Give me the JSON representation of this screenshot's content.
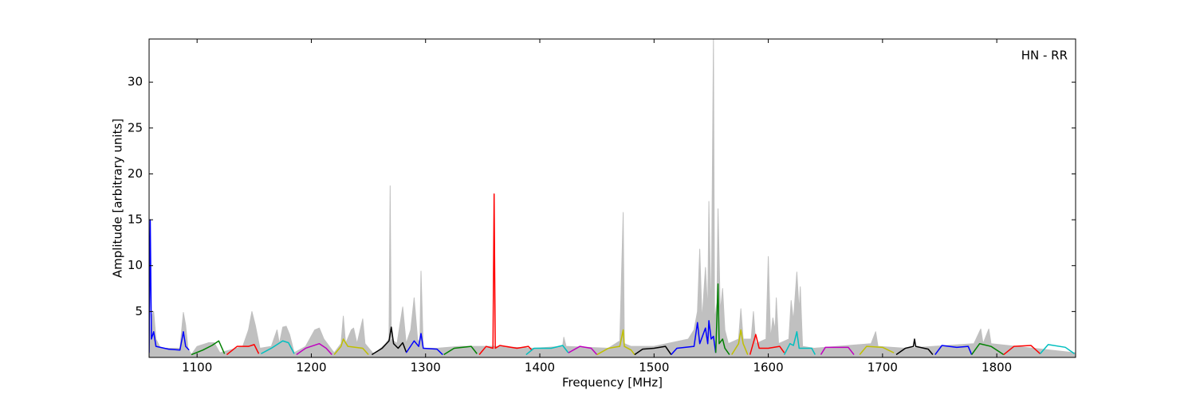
{
  "chart_data": {
    "type": "line",
    "annotation": "HN - RR",
    "xlabel": "Frequency [MHz]",
    "ylabel": "Amplitude [arbitrary units]",
    "xlim": [
      1058,
      1869
    ],
    "xticks": [
      1100,
      1200,
      1300,
      1400,
      1500,
      1600,
      1700,
      1800
    ],
    "ylim": [
      0,
      34.7
    ],
    "yticks": [
      5,
      10,
      15,
      20,
      25,
      30
    ],
    "series": [
      {
        "color": "#c0c0c0",
        "fill": true,
        "x": [
          1058,
          1060,
          1062,
          1064,
          1068,
          1085,
          1088,
          1090,
          1092,
          1095,
          1100,
          1110,
          1115,
          1120,
          1140,
          1145,
          1148,
          1151,
          1155,
          1165,
          1170,
          1172,
          1175,
          1178,
          1181,
          1185,
          1195,
          1203,
          1207,
          1211,
          1220,
          1226,
          1228,
          1230,
          1235,
          1237,
          1240,
          1245,
          1247,
          1255,
          1265,
          1268,
          1269,
          1270,
          1275,
          1280,
          1283,
          1287,
          1290,
          1293,
          1295,
          1296,
          1298,
          1310,
          1330,
          1360,
          1395,
          1420,
          1421,
          1423,
          1460,
          1470,
          1473,
          1474,
          1480,
          1500,
          1530,
          1535,
          1538,
          1540,
          1542,
          1545,
          1547,
          1548,
          1550,
          1552,
          1553,
          1555,
          1556,
          1558,
          1560,
          1562,
          1565,
          1574,
          1576,
          1578,
          1585,
          1587,
          1589,
          1598,
          1600,
          1602,
          1604,
          1606,
          1607,
          1609,
          1618,
          1620,
          1622,
          1625,
          1627,
          1628,
          1630,
          1640,
          1690,
          1694,
          1696,
          1720,
          1780,
          1786,
          1788,
          1793,
          1795,
          1869
        ],
        "values": [
          0.5,
          4.5,
          5,
          2,
          1,
          1,
          4.9,
          3.5,
          1,
          0.3,
          1.2,
          1.6,
          1.6,
          0.5,
          1.2,
          3,
          5,
          3.5,
          1,
          1.2,
          3,
          1.5,
          3.3,
          3.4,
          2.5,
          0.5,
          1.2,
          3,
          3.2,
          2,
          0.5,
          1.5,
          4.5,
          1.5,
          3,
          3.2,
          1.5,
          4.2,
          1.5,
          0.3,
          1.5,
          2,
          18.7,
          2,
          1.5,
          5.5,
          1.5,
          3,
          6.5,
          2,
          1.5,
          9.4,
          1,
          1,
          1.2,
          1.2,
          1,
          1.2,
          2.2,
          1.2,
          1,
          1.8,
          15.8,
          1.5,
          1.2,
          1.2,
          2,
          3,
          5,
          11.8,
          4,
          9.8,
          5,
          17,
          4,
          34.7,
          4,
          6,
          16.2,
          5,
          7.5,
          3,
          1.5,
          2,
          5.3,
          2,
          2,
          5,
          1.5,
          2,
          11,
          2,
          4.3,
          3,
          6.5,
          1.5,
          2,
          6.2,
          4,
          9.3,
          5,
          7.7,
          1.2,
          1,
          1.5,
          2.8,
          1.2,
          1,
          1.5,
          3.1,
          1.5,
          3.1,
          1.5,
          0.5
        ]
      },
      {
        "color": "#0000ff",
        "x": [
          1058,
          1059,
          1060,
          1062,
          1064,
          1075,
          1085,
          1088,
          1090,
          1093
        ],
        "values": [
          0.5,
          15,
          2,
          2.8,
          1.2,
          0.9,
          0.8,
          2.8,
          1.2,
          0.8
        ]
      },
      {
        "color": "#008000",
        "x": [
          1095,
          1105,
          1113,
          1119,
          1124
        ],
        "values": [
          0.3,
          0.8,
          1.3,
          1.8,
          0.4
        ]
      },
      {
        "color": "#ff0000",
        "x": [
          1126,
          1135,
          1145,
          1150,
          1154
        ],
        "values": [
          0.3,
          1.2,
          1.2,
          1.4,
          0.4
        ]
      },
      {
        "color": "#00bfbf",
        "x": [
          1156,
          1165,
          1175,
          1180,
          1185
        ],
        "values": [
          0.4,
          1,
          1.8,
          1.6,
          0.4
        ]
      },
      {
        "color": "#bf00bf",
        "x": [
          1187,
          1195,
          1207,
          1213,
          1218
        ],
        "values": [
          0.3,
          1,
          1.5,
          1,
          0.3
        ]
      },
      {
        "color": "#bfbf00",
        "x": [
          1220,
          1226,
          1228,
          1232,
          1245,
          1250
        ],
        "values": [
          0.3,
          1.2,
          2,
          1.2,
          1,
          0.3
        ]
      },
      {
        "color": "#000000",
        "x": [
          1253,
          1262,
          1268,
          1270,
          1272,
          1276,
          1280,
          1283
        ],
        "values": [
          0.3,
          1,
          1.8,
          3.3,
          1.5,
          1,
          1.6,
          0.6
        ]
      },
      {
        "color": "#0000ff",
        "x": [
          1283,
          1290,
          1294,
          1296,
          1298,
          1310,
          1315
        ],
        "values": [
          0.5,
          1.8,
          1.2,
          2.6,
          1,
          0.9,
          0.3
        ]
      },
      {
        "color": "#008000",
        "x": [
          1316,
          1325,
          1340,
          1345
        ],
        "values": [
          0.3,
          1,
          1.2,
          0.4
        ]
      },
      {
        "color": "#ff0000",
        "x": [
          1347,
          1353,
          1359,
          1360,
          1361,
          1365,
          1380,
          1390,
          1393
        ],
        "values": [
          0.3,
          1.2,
          1,
          17.8,
          1,
          1.3,
          1,
          1.2,
          0.8
        ]
      },
      {
        "color": "#00bfbf",
        "x": [
          1388,
          1395,
          1410,
          1420,
          1425
        ],
        "values": [
          0.3,
          1,
          1,
          1.3,
          0.5
        ]
      },
      {
        "color": "#bf00bf",
        "x": [
          1425,
          1435,
          1445,
          1450
        ],
        "values": [
          0.5,
          1.2,
          1,
          0.3
        ]
      },
      {
        "color": "#bfbf00",
        "x": [
          1450,
          1460,
          1470,
          1473,
          1474,
          1480,
          1483
        ],
        "values": [
          0.3,
          1,
          1.2,
          3,
          1.2,
          0.8,
          0.3
        ]
      },
      {
        "color": "#000000",
        "x": [
          1483,
          1490,
          1500,
          1510,
          1515
        ],
        "values": [
          0.3,
          0.9,
          1,
          1.2,
          0.3
        ]
      },
      {
        "color": "#0000ff",
        "x": [
          1515,
          1520,
          1535,
          1538,
          1540,
          1545,
          1547,
          1548,
          1550,
          1552,
          1554
        ],
        "values": [
          0.3,
          1,
          1.2,
          3.8,
          1.5,
          3.2,
          1.5,
          4,
          2,
          2.3,
          0.5
        ]
      },
      {
        "color": "#008000",
        "x": [
          1554,
          1556,
          1557,
          1560,
          1562,
          1566
        ],
        "values": [
          0.5,
          8,
          1.5,
          2,
          1,
          0.3
        ]
      },
      {
        "color": "#bfbf00",
        "x": [
          1568,
          1574,
          1576,
          1578,
          1582
        ],
        "values": [
          0.3,
          1.5,
          3,
          1.5,
          0.3
        ]
      },
      {
        "color": "#ff0000",
        "x": [
          1584,
          1589,
          1592,
          1600,
          1610,
          1614
        ],
        "values": [
          0.3,
          2.5,
          1,
          1,
          1.2,
          0.5
        ]
      },
      {
        "color": "#00bfbf",
        "x": [
          1614,
          1619,
          1622,
          1625,
          1627,
          1638,
          1641
        ],
        "values": [
          0.3,
          1.5,
          1.3,
          2.8,
          1,
          1,
          0.3
        ]
      },
      {
        "color": "#bf00bf",
        "x": [
          1646,
          1650,
          1670,
          1675
        ],
        "values": [
          0.3,
          1.1,
          1.1,
          0.3
        ]
      },
      {
        "color": "#bfbf00",
        "x": [
          1680,
          1686,
          1700,
          1710
        ],
        "values": [
          0.3,
          1.2,
          1.1,
          0.5
        ]
      },
      {
        "color": "#000000",
        "x": [
          1712,
          1720,
          1727,
          1728,
          1729,
          1740,
          1744
        ],
        "values": [
          0.3,
          1,
          1.2,
          2,
          1.2,
          0.9,
          0.3
        ]
      },
      {
        "color": "#0000ff",
        "x": [
          1746,
          1752,
          1765,
          1775,
          1778
        ],
        "values": [
          0.3,
          1.3,
          1.1,
          1.2,
          0.3
        ]
      },
      {
        "color": "#008000",
        "x": [
          1778,
          1785,
          1795,
          1806
        ],
        "values": [
          0.3,
          1.5,
          1.2,
          0.3
        ]
      },
      {
        "color": "#ff0000",
        "x": [
          1806,
          1815,
          1830,
          1838
        ],
        "values": [
          0.3,
          1.2,
          1.3,
          0.4
        ]
      },
      {
        "color": "#00bfbf",
        "x": [
          1838,
          1845,
          1860,
          1868
        ],
        "values": [
          0.4,
          1.4,
          1.1,
          0.4
        ]
      }
    ]
  }
}
